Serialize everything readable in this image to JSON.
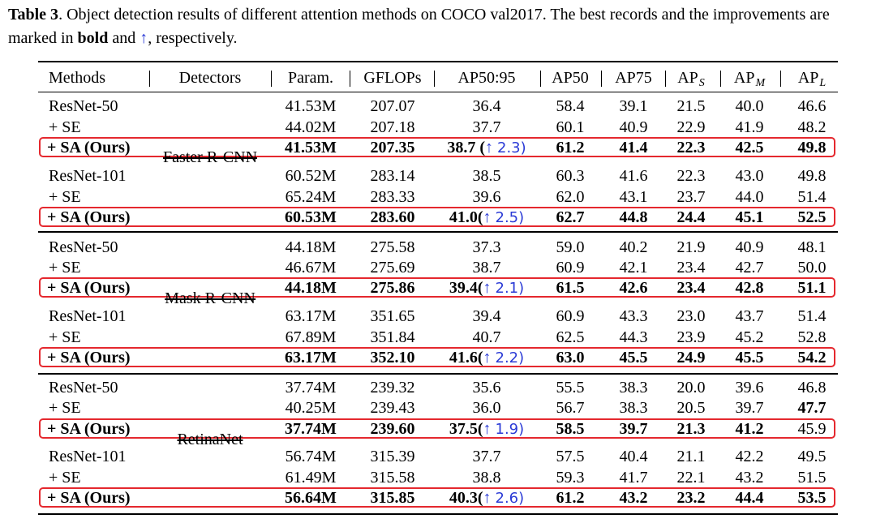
{
  "caption": {
    "label": "Table 3",
    "text_1": ". Object detection results of different attention methods on COCO val2017. The best records and the improvements are marked in ",
    "bold_word": "bold",
    "text_2": " and ",
    "arrow": "↑",
    "text_3": ", respectively."
  },
  "header": {
    "methods": "Methods",
    "detectors": "Detectors",
    "param": "Param.",
    "gflops": "GFLOPs",
    "ap5095": "AP50:95",
    "ap50": "AP50",
    "ap75": "AP75",
    "aps": "AP",
    "aps_sub": "S",
    "apm": "AP",
    "apm_sub": "M",
    "apl": "AP",
    "apl_sub": "L"
  },
  "detectors": [
    "Faster R-CNN",
    "Mask R-CNN",
    "RetinaNet"
  ],
  "arrow_symbol": "↑",
  "rows": [
    {
      "method": "ResNet-50",
      "param": "41.53M",
      "gflops": "207.07",
      "ap": "36.4",
      "imp": "",
      "ap50": "58.4",
      "ap75": "39.1",
      "aps": "21.5",
      "apm": "40.0",
      "apl": "46.6",
      "ours": false
    },
    {
      "method": "+ SE",
      "param": "44.02M",
      "gflops": "207.18",
      "ap": "37.7",
      "imp": "",
      "ap50": "60.1",
      "ap75": "40.9",
      "aps": "22.9",
      "apm": "41.9",
      "apl": "48.2",
      "ours": false
    },
    {
      "method": "+ SA (Ours)",
      "param": "41.53M",
      "gflops": "207.35",
      "ap": "38.7 (",
      "imp": "2.3)",
      "ap50": "61.2",
      "ap75": "41.4",
      "aps": "22.3",
      "apm": "42.5",
      "apl": "49.8",
      "ours": true
    },
    {
      "method": "ResNet-101",
      "param": "60.52M",
      "gflops": "283.14",
      "ap": "38.5",
      "imp": "",
      "ap50": "60.3",
      "ap75": "41.6",
      "aps": "22.3",
      "apm": "43.0",
      "apl": "49.8",
      "ours": false
    },
    {
      "method": "+ SE",
      "param": "65.24M",
      "gflops": "283.33",
      "ap": "39.6",
      "imp": "",
      "ap50": "62.0",
      "ap75": "43.1",
      "aps": "23.7",
      "apm": "44.0",
      "apl": "51.4",
      "ours": false
    },
    {
      "method": "+ SA (Ours)",
      "param": "60.53M",
      "gflops": "283.60",
      "ap": "41.0(",
      "imp": "2.5)",
      "ap50": "62.7",
      "ap75": "44.8",
      "aps": "24.4",
      "apm": "45.1",
      "apl": "52.5",
      "ours": true
    },
    {
      "method": "ResNet-50",
      "param": "44.18M",
      "gflops": "275.58",
      "ap": "37.3",
      "imp": "",
      "ap50": "59.0",
      "ap75": "40.2",
      "aps": "21.9",
      "apm": "40.9",
      "apl": "48.1",
      "ours": false
    },
    {
      "method": "+ SE",
      "param": "46.67M",
      "gflops": "275.69",
      "ap": "38.7",
      "imp": "",
      "ap50": "60.9",
      "ap75": "42.1",
      "aps": "23.4",
      "apm": "42.7",
      "apl": "50.0",
      "ours": false
    },
    {
      "method": "+ SA (Ours)",
      "param": "44.18M",
      "gflops": "275.86",
      "ap": "39.4(",
      "imp": "2.1)",
      "ap50": "61.5",
      "ap75": "42.6",
      "aps": "23.4",
      "apm": "42.8",
      "apl": "51.1",
      "ours": true
    },
    {
      "method": "ResNet-101",
      "param": "63.17M",
      "gflops": "351.65",
      "ap": "39.4",
      "imp": "",
      "ap50": "60.9",
      "ap75": "43.3",
      "aps": "23.0",
      "apm": "43.7",
      "apl": "51.4",
      "ours": false
    },
    {
      "method": "+ SE",
      "param": "67.89M",
      "gflops": "351.84",
      "ap": "40.7",
      "imp": "",
      "ap50": "62.5",
      "ap75": "44.3",
      "aps": "23.9",
      "apm": "45.2",
      "apl": "52.8",
      "ours": false
    },
    {
      "method": "+ SA (Ours)",
      "param": "63.17M",
      "gflops": "352.10",
      "ap": "41.6(",
      "imp": "2.2)",
      "ap50": "63.0",
      "ap75": "45.5",
      "aps": "24.9",
      "apm": "45.5",
      "apl": "54.2",
      "ours": true
    },
    {
      "method": "ResNet-50",
      "param": "37.74M",
      "gflops": "239.32",
      "ap": "35.6",
      "imp": "",
      "ap50": "55.5",
      "ap75": "38.3",
      "aps": "20.0",
      "apm": "39.6",
      "apl": "46.8",
      "ours": false
    },
    {
      "method": "+ SE",
      "param": "40.25M",
      "gflops": "239.43",
      "ap": "36.0",
      "imp": "",
      "ap50": "56.7",
      "ap75": "38.3",
      "aps": "20.5",
      "apm": "39.7",
      "apl": "47.7",
      "ours": false,
      "bold_apl": true
    },
    {
      "method": "+ SA (Ours)",
      "param": "37.74M",
      "gflops": "239.60",
      "ap": "37.5(",
      "imp": "1.9)",
      "ap50": "58.5",
      "ap75": "39.7",
      "aps": "21.3",
      "apm": "41.2",
      "apl": "45.9",
      "ours": true,
      "plain_apl": true
    },
    {
      "method": "ResNet-101",
      "param": "56.74M",
      "gflops": "315.39",
      "ap": "37.7",
      "imp": "",
      "ap50": "57.5",
      "ap75": "40.4",
      "aps": "21.1",
      "apm": "42.2",
      "apl": "49.5",
      "ours": false
    },
    {
      "method": "+ SE",
      "param": "61.49M",
      "gflops": "315.58",
      "ap": "38.8",
      "imp": "",
      "ap50": "59.3",
      "ap75": "41.7",
      "aps": "22.1",
      "apm": "43.2",
      "apl": "51.5",
      "ours": false
    },
    {
      "method": "+ SA (Ours)",
      "param": "56.64M",
      "gflops": "315.85",
      "ap": "40.3(",
      "imp": "2.6)",
      "ap50": "61.2",
      "ap75": "43.2",
      "aps": "23.2",
      "apm": "44.4",
      "apl": "53.5",
      "ours": true
    }
  ],
  "colors": {
    "highlight_box": "#e5282e",
    "arrow": "#2b3bd6"
  }
}
